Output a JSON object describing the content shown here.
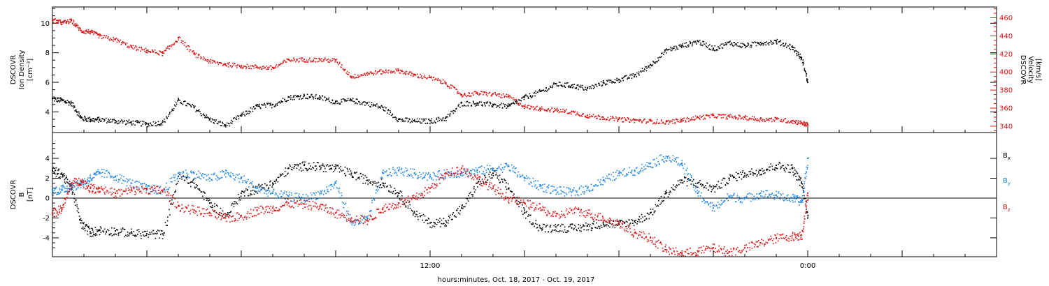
{
  "colors": {
    "black": "#000000",
    "red": "#dd1111",
    "blue": "#1a86e8"
  },
  "xaxis": {
    "label": "hours:minutes, Oct. 18, 2017 - Oct. 19, 2017",
    "tick_labels": [
      {
        "hour": 12,
        "label": "12:00"
      },
      {
        "hour": 24,
        "label": "0:00"
      }
    ],
    "range_hours": [
      0,
      30
    ]
  },
  "chart_data": [
    {
      "type": "scatter",
      "left_label_lines": [
        "DSCOVR",
        "Ion Density",
        "[cm⁻³]"
      ],
      "right_label_lines": [
        "DSCOVR",
        "Velocity",
        "[km/s]"
      ],
      "left_axis": {
        "ylim": [
          2.6,
          11.1
        ],
        "ticks": [
          "4",
          "6",
          "8",
          "10"
        ]
      },
      "right_axis": {
        "ylim": [
          333,
          472
        ],
        "ticks": [
          "340",
          "360",
          "380",
          "400",
          "420",
          "440",
          "460"
        ]
      },
      "series": [
        {
          "color": "black",
          "axis": "left",
          "x": [
            0,
            0.3,
            0.6,
            0.9,
            1.2,
            1.5,
            2,
            2.5,
            3,
            3.5,
            4,
            4.5,
            5,
            5.5,
            6,
            6.5,
            7,
            7.5,
            8,
            8.5,
            9,
            9.5,
            10,
            10.5,
            11,
            11.5,
            12,
            12.5,
            13,
            13.5,
            14,
            14.5,
            15,
            15.5,
            16,
            16.5,
            17,
            17.5,
            18,
            18.5,
            19,
            19.5,
            20,
            20.5,
            21,
            21.5,
            22,
            22.5,
            23,
            23.5,
            23.8,
            24
          ],
          "y": [
            4.9,
            4.8,
            4.6,
            3.6,
            3.5,
            3.5,
            3.4,
            3.3,
            3.2,
            3.3,
            4.8,
            4.3,
            3.5,
            3.1,
            3.8,
            4.4,
            4.5,
            5.0,
            5.1,
            5.0,
            4.7,
            4.8,
            4.6,
            4.3,
            3.5,
            3.4,
            3.4,
            3.6,
            4.6,
            4.6,
            4.5,
            4.4,
            5.0,
            5.4,
            5.9,
            5.8,
            5.6,
            6.0,
            6.2,
            6.5,
            7.2,
            8.2,
            8.5,
            8.8,
            8.3,
            8.7,
            8.5,
            8.7,
            8.8,
            8.4,
            7.6,
            6.0
          ]
        },
        {
          "color": "red",
          "axis": "right",
          "x": [
            0,
            0.3,
            0.6,
            0.9,
            1.2,
            1.5,
            2,
            2.5,
            3,
            3.5,
            4,
            4.5,
            5,
            5.5,
            6,
            6.5,
            7,
            7.5,
            8,
            8.5,
            9,
            9.5,
            10,
            10.5,
            11,
            11.5,
            12,
            12.5,
            13,
            13.5,
            14,
            14.5,
            15,
            15.5,
            16,
            16.5,
            17,
            17.5,
            18,
            18.5,
            19,
            19.5,
            20,
            20.5,
            21,
            21.5,
            22,
            22.5,
            23,
            23.5,
            23.8,
            24
          ],
          "y": [
            458,
            455,
            457,
            446,
            445,
            440,
            436,
            428,
            424,
            421,
            438,
            420,
            412,
            409,
            407,
            406,
            405,
            414,
            414,
            414,
            413,
            395,
            399,
            401,
            402,
            397,
            394,
            388,
            375,
            377,
            376,
            373,
            362,
            360,
            358,
            356,
            352,
            350,
            348,
            347,
            346,
            345,
            347,
            350,
            352,
            351,
            350,
            348,
            348,
            346,
            344,
            342
          ]
        }
      ]
    },
    {
      "type": "scatter",
      "left_label_lines": [
        "DSCOVR",
        "B",
        "[nT]"
      ],
      "ylim": [
        -5.9,
        6.6
      ],
      "ticks": [
        "-4",
        "-2",
        "0",
        "2",
        "4"
      ],
      "legend": [
        {
          "label": "B",
          "sub": "x",
          "color": "black"
        },
        {
          "label": "B",
          "sub": "y",
          "color": "blue"
        },
        {
          "label": "B",
          "sub": "z",
          "color": "red"
        }
      ],
      "series": [
        {
          "color": "black",
          "label": "Bx",
          "x": [
            0,
            0.3,
            0.6,
            0.9,
            1.2,
            1.5,
            2,
            2.5,
            3,
            3.5,
            4,
            4.5,
            5,
            5.5,
            6,
            6.5,
            7,
            7.5,
            8,
            8.5,
            9,
            9.5,
            10,
            10.5,
            11,
            11.5,
            12,
            12.5,
            13,
            13.5,
            14,
            14.5,
            15,
            15.5,
            16,
            16.5,
            17,
            17.5,
            18,
            18.5,
            19,
            19.5,
            20,
            20.5,
            21,
            21.5,
            22,
            22.5,
            23,
            23.5,
            23.8,
            24
          ],
          "y": [
            2.8,
            2.4,
            1.0,
            -2.5,
            -3.4,
            -3.2,
            -3.3,
            -3.5,
            -3.6,
            -3.6,
            2.2,
            1.5,
            -0.5,
            -1.8,
            0.5,
            1.0,
            1.5,
            3.0,
            3.3,
            3.2,
            3.0,
            2.5,
            1.8,
            1.5,
            0.5,
            -1.5,
            -2.5,
            -2.3,
            -1.0,
            1.5,
            2.5,
            1.0,
            -1.5,
            -3.0,
            -2.9,
            -3.0,
            -2.8,
            -2.5,
            -2.6,
            -2.3,
            -1.5,
            0.5,
            1.8,
            1.5,
            1.0,
            2.0,
            2.5,
            2.8,
            3.3,
            3.0,
            1.5,
            -2.0
          ]
        },
        {
          "color": "blue",
          "label": "By",
          "x": [
            0,
            0.3,
            0.6,
            0.9,
            1.2,
            1.5,
            2,
            2.5,
            3,
            3.5,
            4,
            4.5,
            5,
            5.5,
            6,
            6.5,
            7,
            7.5,
            8,
            8.5,
            9,
            9.5,
            10,
            10.5,
            11,
            11.5,
            12,
            12.5,
            13,
            13.5,
            14,
            14.5,
            15,
            15.5,
            16,
            16.5,
            17,
            17.5,
            18,
            18.5,
            19,
            19.5,
            20,
            20.5,
            21,
            21.5,
            22,
            22.5,
            23,
            23.5,
            23.8,
            24
          ],
          "y": [
            0.8,
            0.9,
            1.2,
            1.5,
            2.0,
            2.6,
            2.2,
            1.5,
            1.0,
            0.8,
            2.5,
            2.5,
            2.0,
            2.5,
            2.0,
            1.0,
            0.5,
            0.2,
            0.0,
            0.5,
            1.5,
            -2.5,
            -2.0,
            2.5,
            2.8,
            2.5,
            2.2,
            2.5,
            2.6,
            2.8,
            3.0,
            3.2,
            2.0,
            1.2,
            0.8,
            0.6,
            1.0,
            1.8,
            2.5,
            2.8,
            3.5,
            4.2,
            3.5,
            0.5,
            -1.0,
            0.2,
            0.0,
            0.5,
            0.3,
            0.0,
            -0.3,
            4.0
          ]
        },
        {
          "color": "red",
          "label": "Bz",
          "x": [
            0,
            0.3,
            0.6,
            0.9,
            1.2,
            1.5,
            2,
            2.5,
            3,
            3.5,
            4,
            4.5,
            5,
            5.5,
            6,
            6.5,
            7,
            7.5,
            8,
            8.5,
            9,
            9.5,
            10,
            10.5,
            11,
            11.5,
            12,
            12.5,
            13,
            13.5,
            14,
            14.5,
            15,
            15.5,
            16,
            16.5,
            17,
            17.5,
            18,
            18.5,
            19,
            19.5,
            20,
            20.5,
            21,
            21.5,
            22,
            22.5,
            23,
            23.5,
            23.8,
            24
          ],
          "y": [
            -1.5,
            -1.0,
            1.5,
            1.8,
            1.0,
            1.0,
            0.5,
            0.8,
            0.9,
            0.8,
            -0.8,
            -1.2,
            -1.5,
            -2.0,
            -1.8,
            -1.2,
            -1.0,
            -0.5,
            -0.6,
            -0.8,
            -1.5,
            -2.0,
            -2.2,
            -1.0,
            -0.5,
            0.0,
            1.0,
            2.5,
            3.0,
            2.0,
            1.0,
            0.0,
            -0.5,
            -1.0,
            -1.8,
            -1.2,
            -1.5,
            -2.0,
            -2.5,
            -3.5,
            -4.0,
            -5.2,
            -5.5,
            -5.3,
            -5.0,
            -5.4,
            -5.0,
            -4.5,
            -4.0,
            -3.8,
            -3.7,
            0.5
          ]
        }
      ]
    }
  ]
}
